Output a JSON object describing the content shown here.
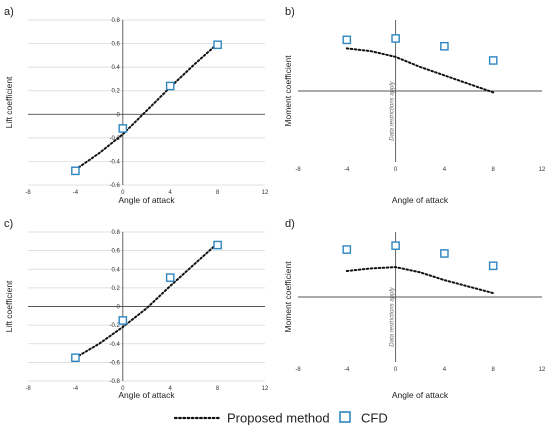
{
  "legend": {
    "proposed_label": "Proposed method",
    "cfd_label": "CFD",
    "proposed_color": "#111111",
    "cfd_color": "#2e86c1"
  },
  "chart_data": [
    {
      "panel": "a)",
      "type": "scatter",
      "xlabel": "Angle of attack",
      "ylabel": "Lift coefficient",
      "xlim": [
        -8,
        12
      ],
      "ylim": [
        -0.6,
        0.8
      ],
      "xticks": [
        -8,
        -4,
        0,
        4,
        8,
        12
      ],
      "yticks": [
        -0.6,
        -0.4,
        -0.2,
        0,
        0.2,
        0.4,
        0.6,
        0.8
      ],
      "grid": true,
      "annotation": "",
      "series": [
        {
          "name": "Proposed method",
          "kind": "line",
          "x": [
            -4,
            -2,
            0,
            2,
            4,
            6,
            8
          ],
          "y": [
            -0.47,
            -0.33,
            -0.17,
            0.03,
            0.23,
            0.42,
            0.6
          ]
        },
        {
          "name": "CFD",
          "kind": "marker",
          "x": [
            -4,
            0,
            4,
            8
          ],
          "y": [
            -0.48,
            -0.12,
            0.24,
            0.59
          ]
        }
      ]
    },
    {
      "panel": "b)",
      "type": "scatter",
      "xlabel": "Angle of attack",
      "ylabel": "Moment coefficient",
      "xlim": [
        -8,
        12
      ],
      "ylim": [
        -1,
        1
      ],
      "xticks": [
        -8,
        -4,
        0,
        4,
        8,
        12
      ],
      "yticks": [],
      "grid": false,
      "annotation": "Data restrictions apply",
      "series": [
        {
          "name": "Proposed method",
          "kind": "line",
          "x": [
            -4,
            -2,
            0,
            2,
            4,
            6,
            8
          ],
          "y": [
            0.6,
            0.56,
            0.48,
            0.34,
            0.22,
            0.1,
            -0.02
          ]
        },
        {
          "name": "CFD",
          "kind": "marker",
          "x": [
            -4,
            0,
            4,
            8
          ],
          "y": [
            0.72,
            0.74,
            0.63,
            0.43
          ]
        }
      ]
    },
    {
      "panel": "c)",
      "type": "scatter",
      "xlabel": "Angle of attack",
      "ylabel": "Lift coefficient",
      "xlim": [
        -8,
        12
      ],
      "ylim": [
        -0.8,
        0.8
      ],
      "xticks": [
        -8,
        -4,
        0,
        4,
        8,
        12
      ],
      "yticks": [
        -0.8,
        -0.6,
        -0.4,
        -0.2,
        0,
        0.2,
        0.4,
        0.6,
        0.8
      ],
      "grid": true,
      "annotation": "",
      "series": [
        {
          "name": "Proposed method",
          "kind": "line",
          "x": [
            -4,
            -2,
            0,
            2,
            4,
            6,
            8
          ],
          "y": [
            -0.55,
            -0.4,
            -0.22,
            -0.02,
            0.22,
            0.45,
            0.68
          ]
        },
        {
          "name": "CFD",
          "kind": "marker",
          "x": [
            -4,
            0,
            4,
            8
          ],
          "y": [
            -0.55,
            -0.15,
            0.31,
            0.66
          ]
        }
      ]
    },
    {
      "panel": "d)",
      "type": "scatter",
      "xlabel": "Angle of attack",
      "ylabel": "Moment coefficient",
      "xlim": [
        -8,
        12
      ],
      "ylim": [
        -1,
        1
      ],
      "xticks": [
        -8,
        -4,
        0,
        4,
        8,
        12
      ],
      "yticks": [],
      "grid": false,
      "annotation": "Data restrictions apply",
      "series": [
        {
          "name": "Proposed method",
          "kind": "line",
          "x": [
            -4,
            -2,
            0,
            2,
            4,
            6,
            8
          ],
          "y": [
            0.4,
            0.44,
            0.46,
            0.38,
            0.26,
            0.16,
            0.06
          ]
        },
        {
          "name": "CFD",
          "kind": "marker",
          "x": [
            -4,
            0,
            4,
            8
          ],
          "y": [
            0.73,
            0.79,
            0.67,
            0.48
          ]
        }
      ]
    }
  ]
}
